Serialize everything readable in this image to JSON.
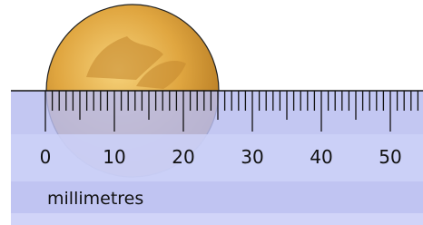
{
  "ruler": {
    "labels": [
      "0",
      "10",
      "20",
      "30",
      "40",
      "50"
    ],
    "unit_label": "millimetres"
  }
}
